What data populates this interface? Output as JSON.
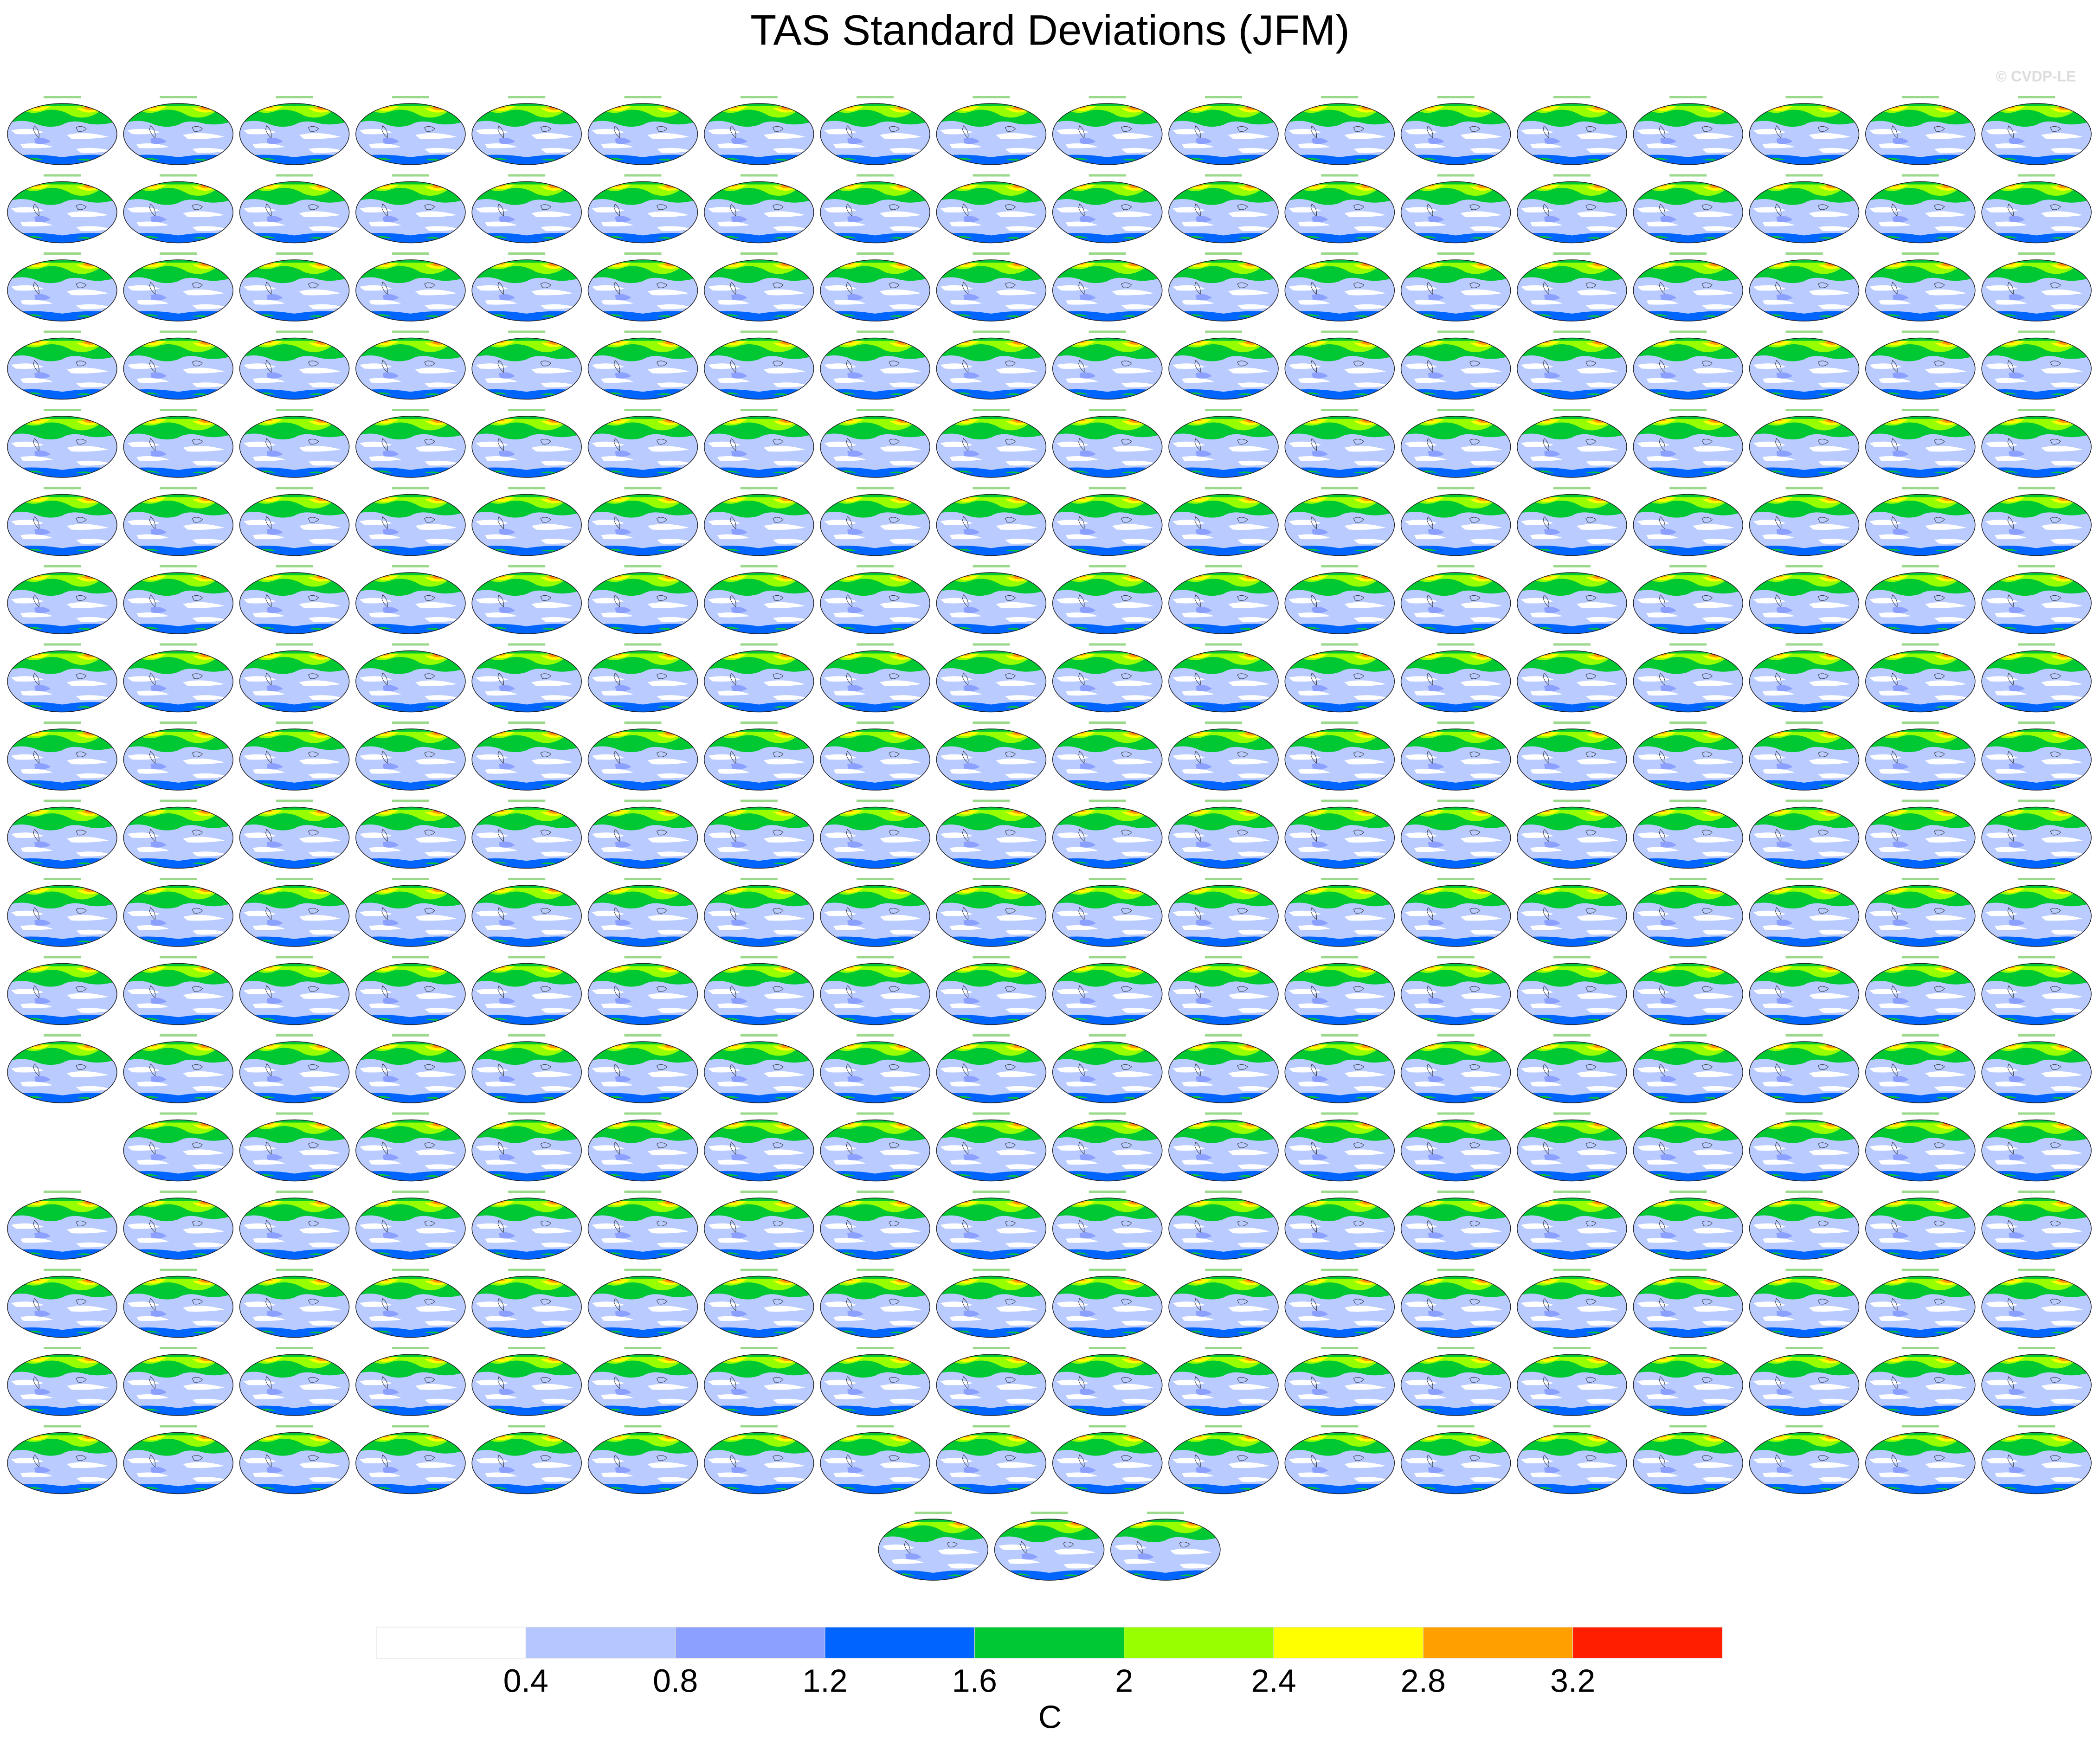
{
  "chart_data": {
    "type": "map-grid",
    "title": "TAS Standard Deviations (JFM)",
    "watermark": "© CVDP-LE",
    "colorbar": {
      "ticks": [
        0.4,
        0.8,
        1.2,
        1.6,
        2,
        2.4,
        2.8,
        3.2
      ],
      "colors": [
        "#ffffff",
        "#b4c8ff",
        "#8ca0ff",
        "#0064ff",
        "#00c832",
        "#96ff00",
        "#ffff00",
        "#ffa000",
        "#ff1e00"
      ],
      "label": "C"
    }
  }
}
